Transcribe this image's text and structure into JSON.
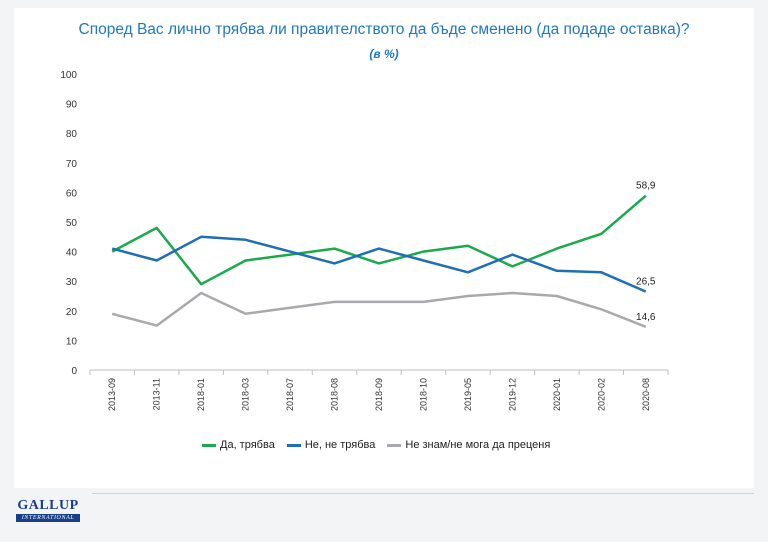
{
  "chart_data": {
    "type": "line",
    "title": "Според Вас лично трябва ли правителството да бъде сменено (да подаде оставка)?",
    "subtitle": "(в %)",
    "categories": [
      "2013-09",
      "2013-11",
      "2018-01",
      "2018-03",
      "2018-07",
      "2018-08",
      "2018-09",
      "2018-10",
      "2019-05",
      "2019-12",
      "2020-01",
      "2020-02",
      "2020-08"
    ],
    "ylim": [
      0,
      100
    ],
    "yticks": [
      0,
      10,
      20,
      30,
      40,
      50,
      60,
      70,
      80,
      90,
      100
    ],
    "grid": false,
    "legend_position": "bottom",
    "series": [
      {
        "name": "Да, трябва",
        "color": "#1aaa4a",
        "values": [
          40,
          48,
          29,
          37,
          39,
          41,
          36,
          40,
          42,
          35,
          41,
          46,
          58.9
        ]
      },
      {
        "name": "Не, не трябва",
        "color": "#1f6fb5",
        "values": [
          41,
          37,
          45,
          44,
          40,
          36,
          41,
          37,
          33,
          39,
          33.5,
          33,
          26.5
        ]
      },
      {
        "name": "Не знам/не мога да преценя",
        "color": "#a7a9ac",
        "values": [
          19,
          15,
          26,
          19,
          21,
          23,
          23,
          23,
          25,
          26,
          25,
          20.5,
          14.6
        ]
      }
    ],
    "data_labels": [
      {
        "series": 0,
        "index": 12,
        "text": "58,9"
      },
      {
        "series": 1,
        "index": 12,
        "text": "26,5"
      },
      {
        "series": 2,
        "index": 12,
        "text": "14,6"
      }
    ]
  },
  "logo": {
    "main": "GALLUP",
    "sub": "INTERNATIONAL"
  }
}
